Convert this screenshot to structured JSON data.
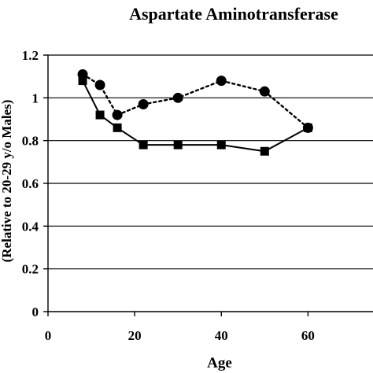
{
  "chart_data": {
    "type": "line",
    "title": "Aspartate Aminotransferase",
    "xlabel": "Age",
    "ylabel": "(Relative to 20-29 y/o Males)",
    "xlim": [
      0,
      75
    ],
    "ylim": [
      0,
      1.2
    ],
    "x_ticks": [
      0,
      20,
      40,
      60
    ],
    "x_tick_labels": [
      "0",
      "20",
      "40",
      "60"
    ],
    "y_ticks": [
      0,
      0.2,
      0.4,
      0.6,
      0.8,
      1,
      1.2
    ],
    "y_tick_labels": [
      "0",
      "0.2",
      "0.4",
      "0.6",
      "0.8",
      "1",
      "1.2"
    ],
    "grid": "horizontal",
    "legend": "none",
    "series": [
      {
        "marker": "square",
        "line_style": "solid",
        "color": "#000000",
        "x": [
          8,
          12,
          16,
          22,
          30,
          40,
          50,
          60
        ],
        "y": [
          1.08,
          0.92,
          0.86,
          0.78,
          0.78,
          0.78,
          0.75,
          0.86
        ]
      },
      {
        "marker": "circle",
        "line_style": "dotted",
        "color": "#000000",
        "x": [
          8,
          12,
          16,
          22,
          30,
          40,
          50,
          60
        ],
        "y": [
          1.11,
          1.06,
          0.92,
          0.97,
          1.0,
          1.08,
          1.03,
          0.86
        ]
      }
    ]
  }
}
